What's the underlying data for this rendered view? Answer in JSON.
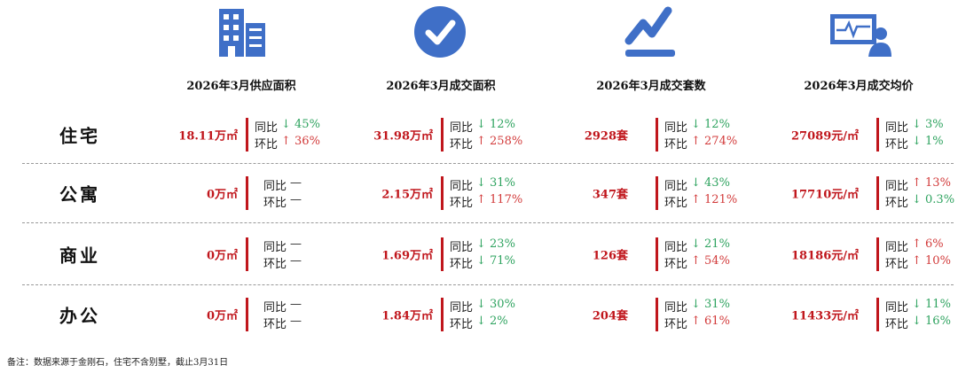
{
  "header": {
    "columns": [
      "2026年3月供应面积",
      "2026年3月成交面积",
      "2026年3月成交套数",
      "2026年3月成交均价"
    ]
  },
  "table": {
    "rows": [
      {
        "label": "住宅",
        "cells": [
          {
            "value": "18.11万㎡",
            "yoy": {
              "label": "同比",
              "text": "↓ 45%",
              "color": "#2ea35f"
            },
            "mom": {
              "label": "环比",
              "text": "↑ 36%",
              "color": "#d23a3a"
            }
          },
          {
            "value": "31.98万㎡",
            "yoy": {
              "label": "同比",
              "text": "↓ 12%",
              "color": "#2ea35f"
            },
            "mom": {
              "label": "环比",
              "text": "↑ 258%",
              "color": "#d23a3a"
            }
          },
          {
            "value": "2928套",
            "yoy": {
              "label": "同比",
              "text": "↓ 12%",
              "color": "#2ea35f"
            },
            "mom": {
              "label": "环比",
              "text": "↑ 274%",
              "color": "#d23a3a"
            }
          },
          {
            "value": "27089元/㎡",
            "yoy": {
              "label": "同比",
              "text": "↓ 3%",
              "color": "#2ea35f"
            },
            "mom": {
              "label": "环比",
              "text": "↓ 1%",
              "color": "#2ea35f"
            }
          }
        ]
      },
      {
        "label": "公寓",
        "cells": [
          {
            "value": "0万㎡",
            "yoy": {
              "label": "同比",
              "text": "—",
              "color": "#222222"
            },
            "mom": {
              "label": "环比",
              "text": "—",
              "color": "#222222"
            }
          },
          {
            "value": "2.15万㎡",
            "yoy": {
              "label": "同比",
              "text": "↓ 31%",
              "color": "#2ea35f"
            },
            "mom": {
              "label": "环比",
              "text": "↑ 117%",
              "color": "#d23a3a"
            }
          },
          {
            "value": "347套",
            "yoy": {
              "label": "同比",
              "text": "↓ 43%",
              "color": "#2ea35f"
            },
            "mom": {
              "label": "环比",
              "text": "↑ 121%",
              "color": "#d23a3a"
            }
          },
          {
            "value": "17710元/㎡",
            "yoy": {
              "label": "同比",
              "text": "↑ 13%",
              "color": "#d23a3a"
            },
            "mom": {
              "label": "环比",
              "text": "↓ 0.3%",
              "color": "#2ea35f"
            }
          }
        ]
      },
      {
        "label": "商业",
        "cells": [
          {
            "value": "0万㎡",
            "yoy": {
              "label": "同比",
              "text": "—",
              "color": "#222222"
            },
            "mom": {
              "label": "环比",
              "text": "—",
              "color": "#222222"
            }
          },
          {
            "value": "1.69万㎡",
            "yoy": {
              "label": "同比",
              "text": "↓ 23%",
              "color": "#2ea35f"
            },
            "mom": {
              "label": "环比",
              "text": "↓ 71%",
              "color": "#2ea35f"
            }
          },
          {
            "value": "126套",
            "yoy": {
              "label": "同比",
              "text": "↓ 21%",
              "color": "#2ea35f"
            },
            "mom": {
              "label": "环比",
              "text": "↑ 54%",
              "color": "#d23a3a"
            }
          },
          {
            "value": "18186元/㎡",
            "yoy": {
              "label": "同比",
              "text": "↑ 6%",
              "color": "#d23a3a"
            },
            "mom": {
              "label": "环比",
              "text": "↑ 10%",
              "color": "#d23a3a"
            }
          }
        ]
      },
      {
        "label": "办公",
        "cells": [
          {
            "value": "0万㎡",
            "yoy": {
              "label": "同比",
              "text": "—",
              "color": "#222222"
            },
            "mom": {
              "label": "环比",
              "text": "—",
              "color": "#222222"
            }
          },
          {
            "value": "1.84万㎡",
            "yoy": {
              "label": "同比",
              "text": "↓ 30%",
              "color": "#2ea35f"
            },
            "mom": {
              "label": "环比",
              "text": "↓ 2%",
              "color": "#2ea35f"
            }
          },
          {
            "value": "204套",
            "yoy": {
              "label": "同比",
              "text": "↓ 31%",
              "color": "#2ea35f"
            },
            "mom": {
              "label": "环比",
              "text": "↑ 61%",
              "color": "#d23a3a"
            }
          },
          {
            "value": "11433元/㎡",
            "yoy": {
              "label": "同比",
              "text": "↓ 11%",
              "color": "#2ea35f"
            },
            "mom": {
              "label": "环比",
              "text": "↓ 16%",
              "color": "#2ea35f"
            }
          }
        ]
      }
    ]
  },
  "footer": {
    "note": "备注：数据来源于金刚石，住宅不含别墅，截止3月31日"
  }
}
